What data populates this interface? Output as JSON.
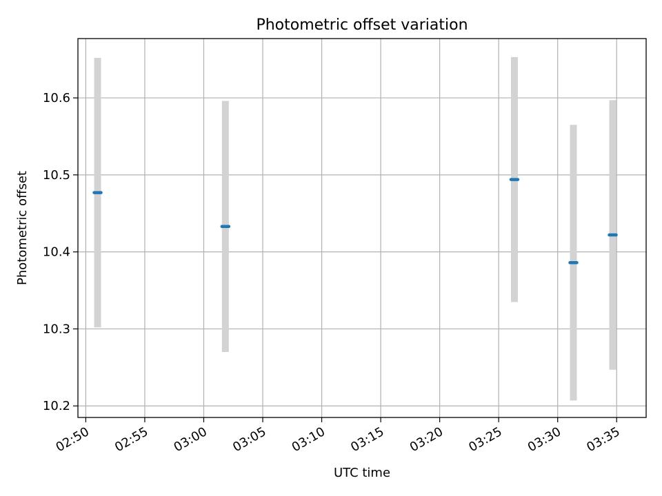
{
  "chart_data": {
    "type": "scatter",
    "title": "Photometric offset variation",
    "xlabel": "UTC time",
    "ylabel": "Photometric offset",
    "x_ticks": [
      "02:50",
      "02:55",
      "03:00",
      "03:05",
      "03:10",
      "03:15",
      "03:20",
      "03:25",
      "03:30",
      "03:35"
    ],
    "y_ticks": [
      "10.2",
      "10.3",
      "10.4",
      "10.5",
      "10.6"
    ],
    "xlim": [
      "02:49:20",
      "03:37:30"
    ],
    "ylim": [
      10.185,
      10.677
    ],
    "grid": true,
    "points": [
      {
        "x": "02:51:00",
        "y": 10.477,
        "err": 0.175
      },
      {
        "x": "03:01:50",
        "y": 10.433,
        "err": 0.163
      },
      {
        "x": "03:26:20",
        "y": 10.494,
        "err": 0.159
      },
      {
        "x": "03:31:20",
        "y": 10.386,
        "err": 0.179
      },
      {
        "x": "03:34:40",
        "y": 10.422,
        "err": 0.175
      }
    ],
    "colors": {
      "point": "#1f77b4",
      "errorbar": "#d3d3d3",
      "grid": "#b0b0b0"
    }
  }
}
